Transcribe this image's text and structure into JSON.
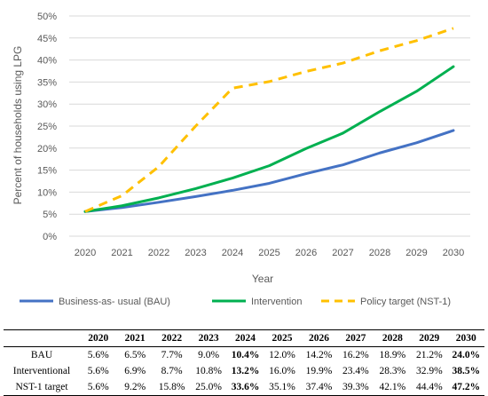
{
  "chart_data": {
    "type": "line",
    "title": "",
    "xlabel": "Year",
    "ylabel": "Percent of households using LPG",
    "ylim": [
      0,
      50
    ],
    "yticks": [
      "0%",
      "5%",
      "10%",
      "15%",
      "20%",
      "25%",
      "30%",
      "35%",
      "40%",
      "45%",
      "50%"
    ],
    "ytick_values": [
      0,
      5,
      10,
      15,
      20,
      25,
      30,
      35,
      40,
      45,
      50
    ],
    "x": [
      "2020",
      "2021",
      "2022",
      "2023",
      "2024",
      "2025",
      "2026",
      "2027",
      "2028",
      "2029",
      "2030"
    ],
    "grid": "horizontal",
    "legend_position": "bottom",
    "series": [
      {
        "name": "Business-as- usual (BAU)",
        "color": "#4472C4",
        "style": "solid",
        "values": [
          5.6,
          6.5,
          7.7,
          9.0,
          10.4,
          12.0,
          14.2,
          16.2,
          18.9,
          21.2,
          24.0
        ]
      },
      {
        "name": "Intervention",
        "color": "#00B050",
        "style": "solid",
        "values": [
          5.6,
          6.9,
          8.7,
          10.8,
          13.2,
          16.0,
          19.9,
          23.4,
          28.3,
          32.9,
          38.5
        ]
      },
      {
        "name": "Policy target (NST-1)",
        "color": "#FFC000",
        "style": "dashed",
        "values": [
          5.6,
          9.2,
          15.8,
          25.0,
          33.6,
          35.1,
          37.4,
          39.3,
          42.1,
          44.4,
          47.2
        ]
      }
    ]
  },
  "table": {
    "corner": "",
    "headers": [
      "2020",
      "2021",
      "2022",
      "2023",
      "2024",
      "2025",
      "2026",
      "2027",
      "2028",
      "2029",
      "2030"
    ],
    "rows": [
      {
        "label": "BAU",
        "cells": [
          "5.6%",
          "6.5%",
          "7.7%",
          "9.0%",
          "10.4%",
          "12.0%",
          "14.2%",
          "16.2%",
          "18.9%",
          "21.2%",
          "24.0%"
        ],
        "bold": [
          false,
          false,
          false,
          false,
          true,
          false,
          false,
          false,
          false,
          false,
          true
        ]
      },
      {
        "label": "Interventional",
        "cells": [
          "5.6%",
          "6.9%",
          "8.7%",
          "10.8%",
          "13.2%",
          "16.0%",
          "19.9%",
          "23.4%",
          "28.3%",
          "32.9%",
          "38.5%"
        ],
        "bold": [
          false,
          false,
          false,
          false,
          true,
          false,
          false,
          false,
          false,
          false,
          true
        ]
      },
      {
        "label": "NST-1 target",
        "cells": [
          "5.6%",
          "9.2%",
          "15.8%",
          "25.0%",
          "33.6%",
          "35.1%",
          "37.4%",
          "39.3%",
          "42.1%",
          "44.4%",
          "47.2%"
        ],
        "bold": [
          false,
          false,
          false,
          false,
          true,
          false,
          false,
          false,
          false,
          false,
          true
        ]
      }
    ]
  }
}
